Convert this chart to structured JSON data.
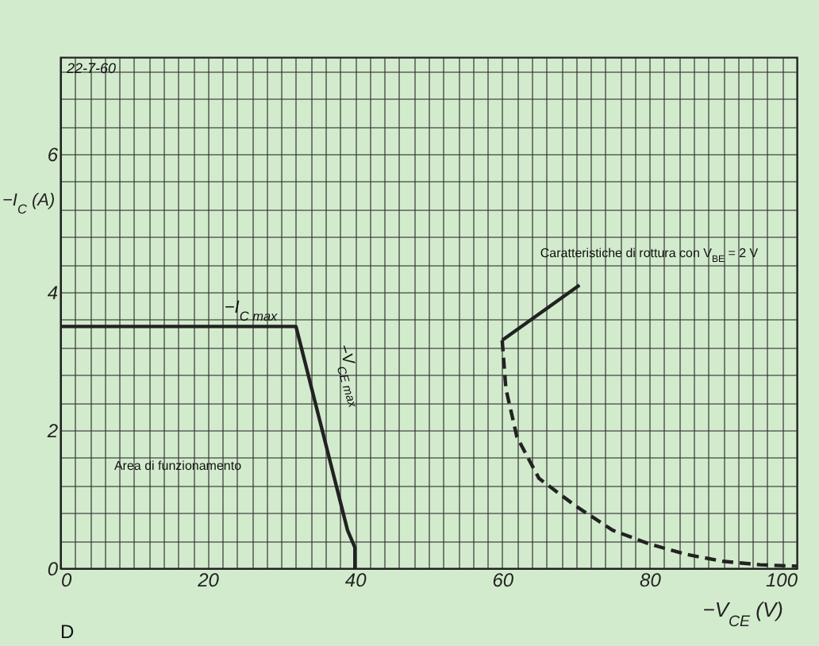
{
  "chart_data": {
    "type": "line",
    "xlabel": "−V$_{CE}$ (V)",
    "ylabel": "−I$_{C}$ (A)",
    "xlim": [
      0,
      100
    ],
    "ylim": [
      0,
      7.4
    ],
    "xticks": [
      0,
      {
        "value": 2,
        "label": null
      },
      {
        "value": 4,
        "label": null
      },
      {
        "value": 6,
        "label": null
      },
      {
        "value": 8,
        "label": null
      },
      {
        "value": 10,
        "label": null
      },
      {
        "value": 12,
        "label": null
      },
      {
        "value": 14,
        "label": null
      },
      {
        "value": 16,
        "label": null
      },
      {
        "value": 18,
        "label": null
      },
      20,
      {
        "value": 22,
        "label": null
      },
      {
        "value": 24,
        "label": null
      },
      {
        "value": 26,
        "label": null
      },
      {
        "value": 28,
        "label": null
      },
      {
        "value": 30,
        "label": null
      },
      {
        "value": 32,
        "label": null
      },
      {
        "value": 34,
        "label": null
      },
      {
        "value": 36,
        "label": null
      },
      {
        "value": 38,
        "label": null
      },
      40,
      {
        "value": 42,
        "label": null
      },
      {
        "value": 44,
        "label": null
      },
      {
        "value": 46,
        "label": null
      },
      {
        "value": 48,
        "label": null
      },
      {
        "value": 50,
        "label": null
      },
      {
        "value": 52,
        "label": null
      },
      {
        "value": 54,
        "label": null
      },
      {
        "value": 56,
        "label": null
      },
      {
        "value": 58,
        "label": null
      },
      60,
      {
        "value": 62,
        "label": null
      },
      {
        "value": 64,
        "label": null
      },
      {
        "value": 66,
        "label": null
      },
      {
        "value": 68,
        "label": null
      },
      {
        "value": 70,
        "label": null
      },
      {
        "value": 72,
        "label": null
      },
      {
        "value": 74,
        "label": null
      },
      {
        "value": 76,
        "label": null
      },
      {
        "value": 78,
        "label": null
      },
      80,
      {
        "value": 82,
        "label": null
      },
      {
        "value": 84,
        "label": null
      },
      {
        "value": 86,
        "label": null
      },
      {
        "value": 88,
        "label": null
      },
      {
        "value": 90,
        "label": null
      },
      {
        "value": 92,
        "label": null
      },
      {
        "value": 94,
        "label": null
      },
      {
        "value": 96,
        "label": null
      },
      {
        "value": 98,
        "label": null
      },
      100
    ],
    "yticks": [
      0,
      {
        "value": 0.4,
        "label": null
      },
      {
        "value": 0.8,
        "label": null
      },
      {
        "value": 1.2,
        "label": null
      },
      {
        "value": 1.6,
        "label": null
      },
      2,
      {
        "value": 2.4,
        "label": null
      },
      {
        "value": 2.8,
        "label": null
      },
      {
        "value": 3.2,
        "label": null
      },
      {
        "value": 3.6,
        "label": null
      },
      4,
      {
        "value": 4.4,
        "label": null
      },
      {
        "value": 4.8,
        "label": null
      },
      {
        "value": 5.2,
        "label": null
      },
      {
        "value": 5.6,
        "label": null
      },
      6,
      {
        "value": 6.4,
        "label": null
      },
      {
        "value": 6.8,
        "label": null
      },
      {
        "value": 7.2,
        "label": null
      }
    ],
    "grid": true,
    "marker": "none",
    "series": [
      {
        "color": "#222222",
        "x": [
          0,
          32,
          39,
          40,
          40
        ],
        "values": [
          3.5,
          3.5,
          0.55,
          0.3,
          0
        ]
      },
      {
        "color": "#222222",
        "line_style": "solid",
        "x": [
          60,
          70.5
        ],
        "values": [
          3.3,
          4.1
        ]
      },
      {
        "color": "#222222",
        "line_style": "dashed",
        "x": [
          60,
          60.5,
          62,
          65,
          70,
          75,
          80,
          85,
          90,
          95,
          100
        ],
        "values": [
          3.3,
          2.6,
          1.9,
          1.3,
          0.9,
          0.55,
          0.35,
          0.2,
          0.1,
          0.05,
          0.03
        ]
      }
    ],
    "annotations": [
      "−I$_{C max}$",
      "−V$_{CE max}$",
      "Area di funzionamento",
      "Caratteristiche di rottura con V$_{BE}$ = 2 V",
      "22-7-60",
      "D"
    ]
  }
}
